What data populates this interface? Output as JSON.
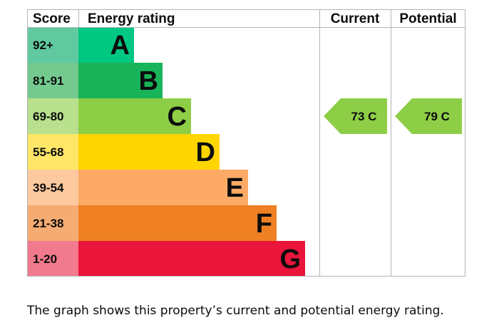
{
  "chart_data": {
    "type": "table",
    "headers": {
      "score": "Score",
      "rating": "Energy rating",
      "current": "Current",
      "potential": "Potential"
    },
    "bands": [
      {
        "letter": "A",
        "range": "92+",
        "min": 92,
        "max": 100,
        "color": "#00c781",
        "score_color": "#61c9a0"
      },
      {
        "letter": "B",
        "range": "81-91",
        "min": 81,
        "max": 91,
        "color": "#19b459",
        "score_color": "#74c98e"
      },
      {
        "letter": "C",
        "range": "69-80",
        "min": 69,
        "max": 80,
        "color": "#8dce46",
        "score_color": "#b8e08d"
      },
      {
        "letter": "D",
        "range": "55-68",
        "min": 55,
        "max": 68,
        "color": "#ffd500",
        "score_color": "#ffe666"
      },
      {
        "letter": "E",
        "range": "39-54",
        "min": 39,
        "max": 54,
        "color": "#fcaa65",
        "score_color": "#fdc99e"
      },
      {
        "letter": "F",
        "range": "21-38",
        "min": 21,
        "max": 38,
        "color": "#ef8023",
        "score_color": "#f5ab72"
      },
      {
        "letter": "G",
        "range": "1-20",
        "min": 1,
        "max": 20,
        "color": "#e9153b",
        "score_color": "#f27a8e"
      }
    ],
    "current": {
      "value": 73,
      "letter": "C",
      "label": "73  C",
      "color": "#8dce46"
    },
    "potential": {
      "value": 79,
      "letter": "C",
      "label": "79  C",
      "color": "#8dce46"
    }
  },
  "caption": "The graph shows this property’s current and potential energy rating."
}
